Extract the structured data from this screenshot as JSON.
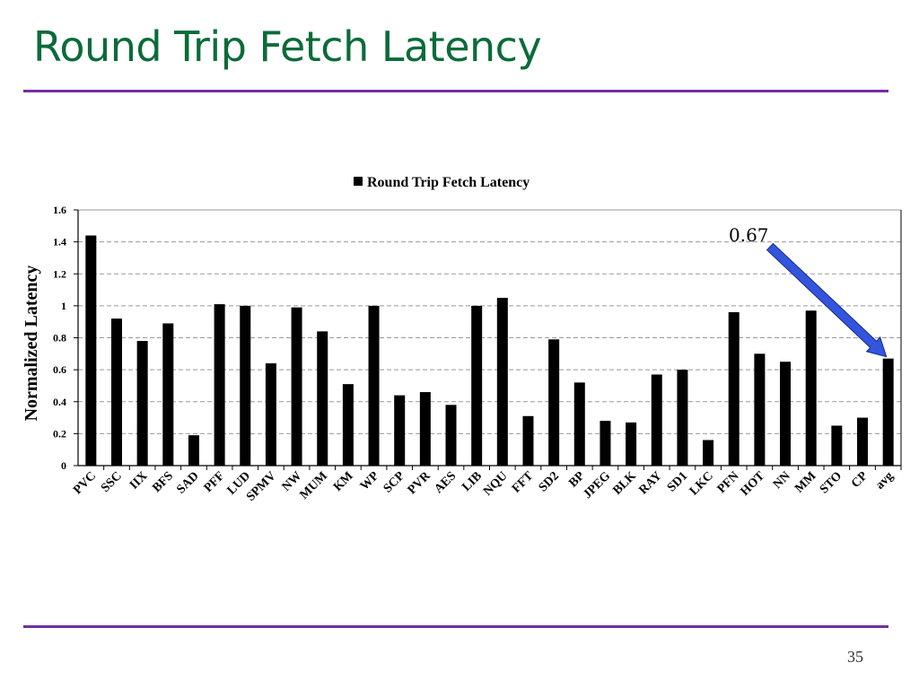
{
  "slide": {
    "title": "Round Trip Fetch Latency",
    "page_number": "35"
  },
  "colors": {
    "title": "#0b6b3a",
    "rule": "#7030a0",
    "bar": "#000000",
    "arrow": "#3355dd"
  },
  "chart_data": {
    "type": "bar",
    "legend": "top-center",
    "series": [
      {
        "name": "Round Trip Fetch Latency",
        "values": [
          1.44,
          0.92,
          0.78,
          0.89,
          0.19,
          1.01,
          1.0,
          0.64,
          0.99,
          0.84,
          0.51,
          1.0,
          0.44,
          0.46,
          0.38,
          1.0,
          1.05,
          0.31,
          0.79,
          0.52,
          0.28,
          0.27,
          0.57,
          0.6,
          0.16,
          0.96,
          0.7,
          0.65,
          0.97,
          0.25,
          0.3,
          0.67
        ]
      }
    ],
    "categories": [
      "PVC",
      "SSC",
      "IIX",
      "BFS",
      "SAD",
      "PFF",
      "LUD",
      "SPMV",
      "NW",
      "MUM",
      "KM",
      "WP",
      "SCP",
      "PVR",
      "AES",
      "LIB",
      "NQU",
      "FFT",
      "SD2",
      "BP",
      "JPEG",
      "BLK",
      "RAY",
      "SD1",
      "LKC",
      "PFN",
      "HOT",
      "NN",
      "MM",
      "STO",
      "CP",
      "avg"
    ],
    "ylabel": "Normalized Latency",
    "xlabel": "",
    "ylim": [
      0,
      1.6
    ],
    "yticks": [
      "0",
      "0.2",
      "0.4",
      "0.6",
      "0.8",
      "1",
      "1.2",
      "1.4",
      "1.6"
    ],
    "grid": true,
    "annotation": {
      "text": "0.67",
      "category": "avg"
    }
  }
}
